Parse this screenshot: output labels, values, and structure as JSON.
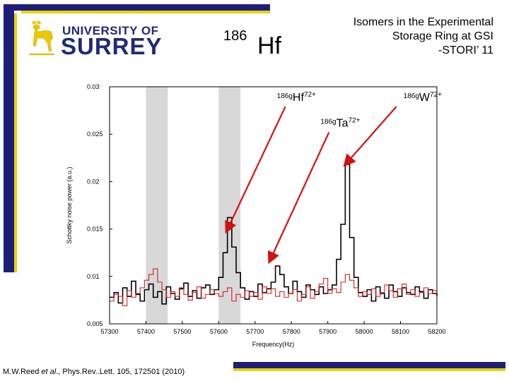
{
  "logo": {
    "line1": "UNIVERSITY OF",
    "line2": "SURREY"
  },
  "header": {
    "isotope_mass": "186",
    "isotope_symbol": "Hf",
    "title_lines": [
      "Isomers in the Experimental",
      "Storage Ring at GSI",
      "-STORI’ 11"
    ]
  },
  "citation": {
    "authors": "M.W.Reed ",
    "etal": "et al",
    "rest": "., Phys.Rev..Lett. 105, 172501 (2010)"
  },
  "colors": {
    "accent_navy": "#1e1e7a",
    "accent_yellow": "#e8d400",
    "black_series": "#000000",
    "red_series": "#d42020",
    "highlight_band": "#d8d8d8",
    "arrow": "#d41010"
  },
  "chart_data": {
    "type": "line",
    "xlabel": "Frequency(Hz)",
    "ylabel": "Schottky noise power (a.u.)",
    "xlim": [
      57300,
      58200
    ],
    "ylim": [
      0.005,
      0.03
    ],
    "xticks": [
      57300,
      57400,
      57500,
      57600,
      57700,
      57800,
      57900,
      58000,
      58100,
      58200
    ],
    "yticks": [
      0.005,
      0.01,
      0.015,
      0.02,
      0.025,
      0.03
    ],
    "ytick_labels": [
      "0.005",
      "0.01",
      "0.015",
      "0.02",
      "0.025",
      "0.03"
    ],
    "highlight_bands": [
      [
        57400,
        57460
      ],
      [
        57600,
        57660
      ]
    ],
    "series": [
      {
        "color": "#000000",
        "x": [
          57300,
          57312,
          57324,
          57336,
          57348,
          57360,
          57372,
          57384,
          57396,
          57408,
          57420,
          57432,
          57444,
          57456,
          57468,
          57480,
          57492,
          57504,
          57516,
          57528,
          57540,
          57552,
          57564,
          57576,
          57588,
          57600,
          57612,
          57624,
          57636,
          57648,
          57660,
          57672,
          57684,
          57696,
          57708,
          57720,
          57732,
          57744,
          57756,
          57768,
          57780,
          57792,
          57804,
          57816,
          57828,
          57840,
          57852,
          57864,
          57876,
          57888,
          57900,
          57912,
          57924,
          57936,
          57948,
          57960,
          57972,
          57984,
          57996,
          58008,
          58020,
          58032,
          58044,
          58056,
          58068,
          58080,
          58092,
          58104,
          58116,
          58128,
          58140,
          58152,
          58164,
          58176,
          58188,
          58200
        ],
        "y": [
          0.0078,
          0.0083,
          0.0072,
          0.0088,
          0.0079,
          0.0095,
          0.0081,
          0.0074,
          0.0086,
          0.0092,
          0.0078,
          0.0084,
          0.0071,
          0.0089,
          0.0082,
          0.0076,
          0.0087,
          0.0093,
          0.0079,
          0.0085,
          0.0077,
          0.0088,
          0.0091,
          0.0081,
          0.0086,
          0.0099,
          0.0125,
          0.0162,
          0.0131,
          0.0104,
          0.0088,
          0.0076,
          0.0084,
          0.0079,
          0.0092,
          0.0083,
          0.0087,
          0.0094,
          0.0111,
          0.0102,
          0.0089,
          0.0082,
          0.0095,
          0.0084,
          0.0078,
          0.0091,
          0.0086,
          0.0081,
          0.0089,
          0.0082,
          0.0086,
          0.0091,
          0.0118,
          0.0155,
          0.0218,
          0.0141,
          0.0099,
          0.0083,
          0.0079,
          0.0086,
          0.0074,
          0.0089,
          0.0082,
          0.0077,
          0.0091,
          0.0084,
          0.0079,
          0.0088,
          0.0083,
          0.0081,
          0.0089,
          0.0084,
          0.0077,
          0.0086,
          0.0082,
          0.0079
        ]
      },
      {
        "color": "#d42020",
        "x": [
          57300,
          57312,
          57324,
          57336,
          57348,
          57360,
          57372,
          57384,
          57396,
          57408,
          57420,
          57432,
          57444,
          57456,
          57468,
          57480,
          57492,
          57504,
          57516,
          57528,
          57540,
          57552,
          57564,
          57576,
          57588,
          57600,
          57612,
          57624,
          57636,
          57648,
          57660,
          57672,
          57684,
          57696,
          57708,
          57720,
          57732,
          57744,
          57756,
          57768,
          57780,
          57792,
          57804,
          57816,
          57828,
          57840,
          57852,
          57864,
          57876,
          57888,
          57900,
          57912,
          57924,
          57936,
          57948,
          57960,
          57972,
          57984,
          57996,
          58008,
          58020,
          58032,
          58044,
          58056,
          58068,
          58080,
          58092,
          58104,
          58116,
          58128,
          58140,
          58152,
          58164,
          58176,
          58188,
          58200
        ],
        "y": [
          0.0074,
          0.0081,
          0.0079,
          0.0069,
          0.0085,
          0.0078,
          0.0082,
          0.0088,
          0.0096,
          0.0102,
          0.0108,
          0.0094,
          0.0086,
          0.0078,
          0.0084,
          0.0079,
          0.0088,
          0.0081,
          0.0075,
          0.0083,
          0.0089,
          0.0077,
          0.0081,
          0.0086,
          0.0082,
          0.0079,
          0.0084,
          0.0088,
          0.0074,
          0.0081,
          0.0078,
          0.0085,
          0.0079,
          0.0083,
          0.0076,
          0.0089,
          0.0082,
          0.0087,
          0.0079,
          0.0084,
          0.0078,
          0.0082,
          0.0086,
          0.0074,
          0.0081,
          0.0089,
          0.0077,
          0.0084,
          0.0092,
          0.0098,
          0.0082,
          0.0087,
          0.0083,
          0.0094,
          0.0102,
          0.0096,
          0.0088,
          0.0079,
          0.0084,
          0.0081,
          0.0087,
          0.0079,
          0.0083,
          0.0091,
          0.0085,
          0.0078,
          0.0087,
          0.0092,
          0.0081,
          0.0086,
          0.0079,
          0.0083,
          0.0088,
          0.0082,
          0.0085,
          0.008
        ]
      }
    ],
    "annotations": [
      {
        "mass": "186g",
        "symbol": "Hf",
        "charge": "72+",
        "label_at": [
          57760,
          0.0285
        ],
        "arrow_to": [
          57622,
          0.0148
        ]
      },
      {
        "mass": "186g",
        "symbol": "Ta",
        "charge": "72+",
        "label_at": [
          57880,
          0.0258
        ],
        "arrow_to": [
          57740,
          0.0116
        ]
      },
      {
        "mass": "186g",
        "symbol": "W",
        "charge": "72+",
        "label_at": [
          58108,
          0.0285
        ],
        "arrow_to": [
          57948,
          0.0218
        ]
      }
    ]
  }
}
